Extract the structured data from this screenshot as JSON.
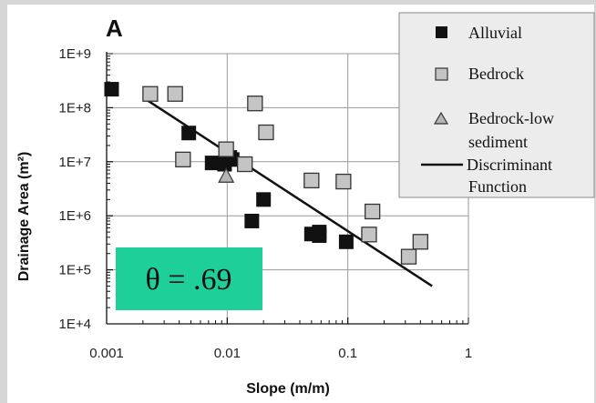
{
  "chart_data": {
    "type": "scatter",
    "panel_label": "A",
    "xlabel": "Slope (m/m)",
    "ylabel": "Drainage Area (m²)",
    "x_scale": "log",
    "y_scale": "log",
    "xlim": [
      0.001,
      1
    ],
    "ylim": [
      10000,
      1000000000
    ],
    "x_ticks": [
      "0.001",
      "0.01",
      "0.1",
      "1"
    ],
    "y_ticks": [
      "1E+4",
      "1E+5",
      "1E+6",
      "1E+7",
      "1E+8",
      "1E+9"
    ],
    "grid": true,
    "legend_position": "top-right",
    "annotation": "θ = .69",
    "annotation_color": "#1fcf9a",
    "series": [
      {
        "name": "Alluvial",
        "marker": "square-filled",
        "color": "#111111",
        "points": [
          [
            0.0011,
            220000000.0
          ],
          [
            0.0048,
            34000000.0
          ],
          [
            0.0075,
            9500000.0
          ],
          [
            0.0095,
            9000000.0
          ],
          [
            0.011,
            11000000.0
          ],
          [
            0.0105,
            12000000.0
          ],
          [
            0.016,
            800000.0
          ],
          [
            0.02,
            2000000.0
          ],
          [
            0.05,
            460000.0
          ],
          [
            0.058,
            430000.0
          ],
          [
            0.058,
            500000.0
          ],
          [
            0.097,
            330000.0
          ]
        ]
      },
      {
        "name": "Bedrock",
        "marker": "square-open",
        "color": "#c4c4c4",
        "points": [
          [
            0.0023,
            180000000.0
          ],
          [
            0.0037,
            180000000.0
          ],
          [
            0.0043,
            11000000.0
          ],
          [
            0.0098,
            17000000.0
          ],
          [
            0.014,
            9000000.0
          ],
          [
            0.017,
            120000000.0
          ],
          [
            0.021,
            35000000.0
          ],
          [
            0.05,
            4500000.0
          ],
          [
            0.092,
            4300000.0
          ],
          [
            0.16,
            1200000.0
          ],
          [
            0.15,
            450000.0
          ],
          [
            0.32,
            175000.0
          ],
          [
            0.4,
            330000.0
          ]
        ]
      },
      {
        "name": "Bedrock-low sediment",
        "marker": "triangle-open",
        "color": "#b5b5b5",
        "points": [
          [
            0.0098,
            5500000.0
          ]
        ]
      },
      {
        "name": "Discriminant Function",
        "marker": "line",
        "color": "#111111",
        "points": [
          [
            0.0022,
            135000000.0
          ],
          [
            0.5,
            50000.0
          ]
        ]
      }
    ]
  },
  "legend": {
    "items": [
      {
        "line1": "Alluvial",
        "line2": ""
      },
      {
        "line1": "Bedrock",
        "line2": ""
      },
      {
        "line1": "Bedrock-low",
        "line2": "sediment"
      },
      {
        "line1": "Discriminant",
        "line2": "Function"
      }
    ]
  }
}
